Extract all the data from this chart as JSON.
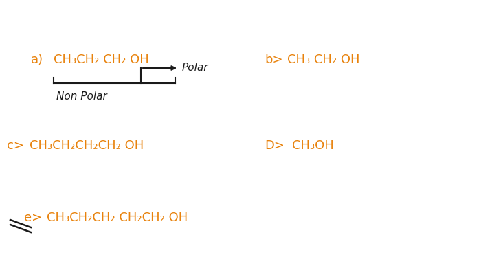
{
  "bg_color": "#ffffff",
  "orange_color": "#E8820C",
  "black_color": "#1a1a1a",
  "label_a": "a)",
  "formula_a": "CH₃CH₂ CH₂ OH",
  "label_b": "b>",
  "formula_b": "CH₃ CH₂ OH",
  "label_c": "c>",
  "formula_c": "CH₃CH₂CH₂CH₂ OH",
  "label_D": "D>",
  "formula_D": "CH₃OH",
  "label_e": "e>",
  "formula_e": "CH₃CH₂CH₂ CH₂CH₂ OH",
  "non_polar_text": "Non Polar",
  "polar_text": "Polar",
  "font_size_label": 13,
  "font_size_formula": 13,
  "font_size_annotation": 11
}
